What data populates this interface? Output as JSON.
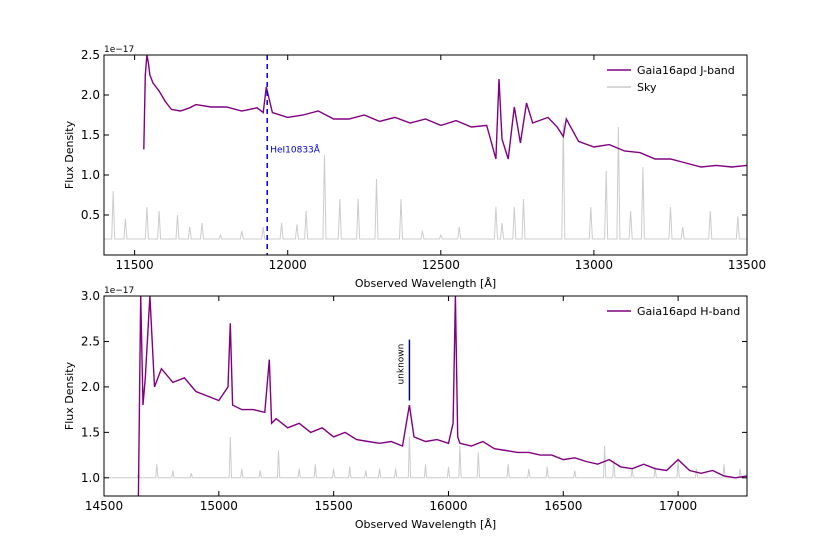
{
  "chart_data": [
    {
      "type": "line",
      "xlabel": "Observed Wavelength [Å]",
      "ylabel": "Flux Density",
      "offset_label": "1e−17",
      "xlim": [
        11400,
        13500
      ],
      "ylim": [
        0,
        2.5
      ],
      "xticks": [
        11500,
        12000,
        12500,
        13000,
        13500
      ],
      "yticks": [
        0.5,
        1.0,
        1.5,
        2.0,
        2.5
      ],
      "grid": false,
      "legend_position": "top-right",
      "series": [
        {
          "name": "Gaia16apd J-band",
          "color": "#800080",
          "x": [
            11530,
            11535,
            11540,
            11545,
            11550,
            11560,
            11580,
            11600,
            11620,
            11650,
            11680,
            11700,
            11750,
            11800,
            11850,
            11900,
            11920,
            11930,
            11950,
            12000,
            12050,
            12100,
            12150,
            12200,
            12250,
            12300,
            12350,
            12400,
            12450,
            12500,
            12550,
            12600,
            12650,
            12680,
            12690,
            12700,
            12720,
            12740,
            12760,
            12780,
            12800,
            12850,
            12880,
            12900,
            12910,
            12950,
            13000,
            13050,
            13100,
            13150,
            13200,
            13250,
            13300,
            13350,
            13400,
            13450,
            13500
          ],
          "y": [
            1.32,
            2.25,
            2.5,
            2.4,
            2.25,
            2.15,
            2.05,
            1.92,
            1.82,
            1.8,
            1.84,
            1.88,
            1.85,
            1.85,
            1.8,
            1.84,
            1.78,
            2.1,
            1.78,
            1.72,
            1.75,
            1.8,
            1.7,
            1.7,
            1.75,
            1.67,
            1.72,
            1.65,
            1.7,
            1.62,
            1.68,
            1.6,
            1.62,
            1.2,
            2.2,
            1.45,
            1.2,
            1.85,
            1.4,
            1.9,
            1.65,
            1.72,
            1.6,
            1.48,
            1.7,
            1.42,
            1.35,
            1.38,
            1.3,
            1.28,
            1.2,
            1.2,
            1.15,
            1.1,
            1.12,
            1.1,
            1.12
          ]
        },
        {
          "name": "Sky",
          "color": "#cccccc",
          "baseline": 0.2,
          "lines": [
            [
              11430,
              0.8
            ],
            [
              11470,
              0.45
            ],
            [
              11540,
              0.6
            ],
            [
              11580,
              0.55
            ],
            [
              11640,
              0.5
            ],
            [
              11680,
              0.35
            ],
            [
              11720,
              0.4
            ],
            [
              11780,
              0.25
            ],
            [
              11850,
              0.3
            ],
            [
              11920,
              0.35
            ],
            [
              11980,
              0.4
            ],
            [
              12030,
              0.38
            ],
            [
              12060,
              0.55
            ],
            [
              12120,
              1.25
            ],
            [
              12170,
              0.7
            ],
            [
              12230,
              0.7
            ],
            [
              12290,
              0.95
            ],
            [
              12370,
              0.7
            ],
            [
              12440,
              0.3
            ],
            [
              12500,
              0.25
            ],
            [
              12560,
              0.35
            ],
            [
              12680,
              0.6
            ],
            [
              12700,
              0.4
            ],
            [
              12740,
              0.6
            ],
            [
              12770,
              0.7
            ],
            [
              12900,
              1.65
            ],
            [
              12990,
              0.6
            ],
            [
              13040,
              1.05
            ],
            [
              13080,
              1.6
            ],
            [
              13120,
              0.55
            ],
            [
              13160,
              1.1
            ],
            [
              13250,
              0.6
            ],
            [
              13290,
              0.35
            ],
            [
              13380,
              0.55
            ],
            [
              13470,
              0.48
            ]
          ]
        }
      ],
      "annotations": [
        {
          "type": "vline",
          "x": 11933,
          "style": "dashed",
          "color": "#0000cc",
          "label": "HeI10833Å",
          "label_y": 1.28
        }
      ]
    },
    {
      "type": "line",
      "xlabel": "Observed Wavelength [Å]",
      "ylabel": "Flux Density",
      "offset_label": "1e−17",
      "xlim": [
        14500,
        17300
      ],
      "ylim": [
        0.8,
        3.0
      ],
      "xticks": [
        14500,
        15000,
        15500,
        16000,
        16500,
        17000
      ],
      "yticks": [
        1.0,
        1.5,
        2.0,
        2.5,
        3.0
      ],
      "grid": false,
      "legend_position": "top-right",
      "series": [
        {
          "name": "Gaia16apd H-band",
          "color": "#800080",
          "x": [
            14650,
            14660,
            14670,
            14680,
            14700,
            14720,
            14750,
            14800,
            14850,
            14900,
            14950,
            15000,
            15040,
            15050,
            15060,
            15100,
            15150,
            15200,
            15220,
            15230,
            15250,
            15300,
            15350,
            15400,
            15450,
            15500,
            15550,
            15600,
            15650,
            15700,
            15750,
            15800,
            15830,
            15850,
            15900,
            15950,
            16000,
            16020,
            16030,
            16040,
            16050,
            16100,
            16150,
            16200,
            16250,
            16300,
            16350,
            16400,
            16450,
            16500,
            16550,
            16600,
            16650,
            16700,
            16750,
            16800,
            16850,
            16900,
            16950,
            17000,
            17050,
            17100,
            17150,
            17200,
            17250,
            17300
          ],
          "y": [
            0.8,
            3.0,
            1.8,
            2.1,
            3.0,
            2.0,
            2.2,
            2.05,
            2.1,
            1.95,
            1.9,
            1.85,
            2.0,
            2.7,
            1.8,
            1.75,
            1.75,
            1.72,
            2.3,
            1.6,
            1.65,
            1.55,
            1.6,
            1.5,
            1.55,
            1.45,
            1.5,
            1.42,
            1.4,
            1.38,
            1.4,
            1.35,
            1.8,
            1.45,
            1.4,
            1.42,
            1.38,
            1.6,
            3.0,
            1.45,
            1.38,
            1.35,
            1.4,
            1.32,
            1.3,
            1.28,
            1.28,
            1.25,
            1.25,
            1.2,
            1.22,
            1.18,
            1.15,
            1.2,
            1.12,
            1.1,
            1.15,
            1.1,
            1.08,
            1.2,
            1.08,
            1.05,
            1.08,
            1.02,
            1.0,
            1.02
          ]
        },
        {
          "name": "",
          "color": "#cccccc",
          "baseline": 1.0,
          "lines": [
            [
              14650,
              1.05
            ],
            [
              14730,
              1.15
            ],
            [
              14800,
              1.08
            ],
            [
              14880,
              1.05
            ],
            [
              15050,
              1.45
            ],
            [
              15100,
              1.1
            ],
            [
              15180,
              1.08
            ],
            [
              15260,
              1.3
            ],
            [
              15350,
              1.1
            ],
            [
              15420,
              1.15
            ],
            [
              15500,
              1.1
            ],
            [
              15570,
              1.12
            ],
            [
              15640,
              1.08
            ],
            [
              15700,
              1.1
            ],
            [
              15770,
              1.1
            ],
            [
              15830,
              1.45
            ],
            [
              15900,
              1.15
            ],
            [
              16000,
              1.12
            ],
            [
              16050,
              1.35
            ],
            [
              16130,
              1.28
            ],
            [
              16260,
              1.15
            ],
            [
              16350,
              1.1
            ],
            [
              16430,
              1.12
            ],
            [
              16550,
              1.08
            ],
            [
              16680,
              1.35
            ],
            [
              16720,
              1.2
            ],
            [
              16800,
              1.1
            ],
            [
              16900,
              1.12
            ],
            [
              17000,
              1.2
            ],
            [
              17080,
              1.1
            ],
            [
              17200,
              1.15
            ],
            [
              17270,
              1.1
            ]
          ]
        }
      ],
      "annotations": [
        {
          "type": "segment",
          "x": 15830,
          "y_from": 1.85,
          "y_to": 2.52,
          "color": "#00008b",
          "label": "unknown"
        }
      ]
    }
  ]
}
